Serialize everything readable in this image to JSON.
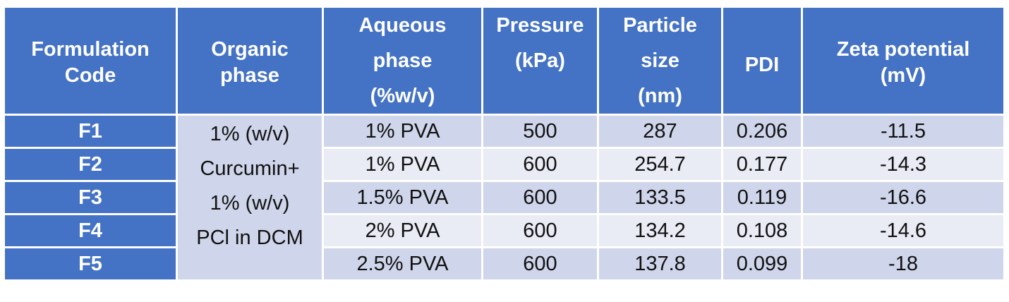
{
  "table": {
    "headers": [
      "Formulation Code",
      "Organic phase",
      "Aqueous phase (%w/v)",
      "Pressure (kPa)",
      "Particle size (nm)",
      "PDI",
      "Zeta potential (mV)"
    ],
    "header_lines": [
      [
        "Formulation",
        "Code"
      ],
      [
        "Organic",
        "phase"
      ],
      [
        "Aqueous",
        "phase",
        "(%w/v)"
      ],
      [
        "Pressure",
        "(kPa)"
      ],
      [
        "Particle",
        "size",
        "(nm)"
      ],
      [
        "PDI"
      ],
      [
        "Zeta potential",
        "(mV)"
      ]
    ],
    "organic_phase_lines": [
      "1% (w/v)",
      "Curcumin+",
      "1% (w/v)",
      "PCl in DCM"
    ],
    "rows": [
      {
        "code": "F1",
        "aqueous": "1% PVA",
        "pressure": "500",
        "size": "287",
        "pdi": "0.206",
        "zeta": "-11.5"
      },
      {
        "code": "F2",
        "aqueous": "1% PVA",
        "pressure": "600",
        "size": "254.7",
        "pdi": "0.177",
        "zeta": "-14.3"
      },
      {
        "code": "F3",
        "aqueous": "1.5% PVA",
        "pressure": "600",
        "size": "133.5",
        "pdi": "0.119",
        "zeta": "-16.6"
      },
      {
        "code": "F4",
        "aqueous": "2% PVA",
        "pressure": "600",
        "size": "134.2",
        "pdi": "0.108",
        "zeta": "-14.6"
      },
      {
        "code": "F5",
        "aqueous": "2.5% PVA",
        "pressure": "600",
        "size": "137.8",
        "pdi": "0.099",
        "zeta": "-18"
      }
    ]
  },
  "colors": {
    "header_bg": "#4472c4",
    "row_dark": "#cfd5ea",
    "row_light": "#e9ebf5"
  }
}
